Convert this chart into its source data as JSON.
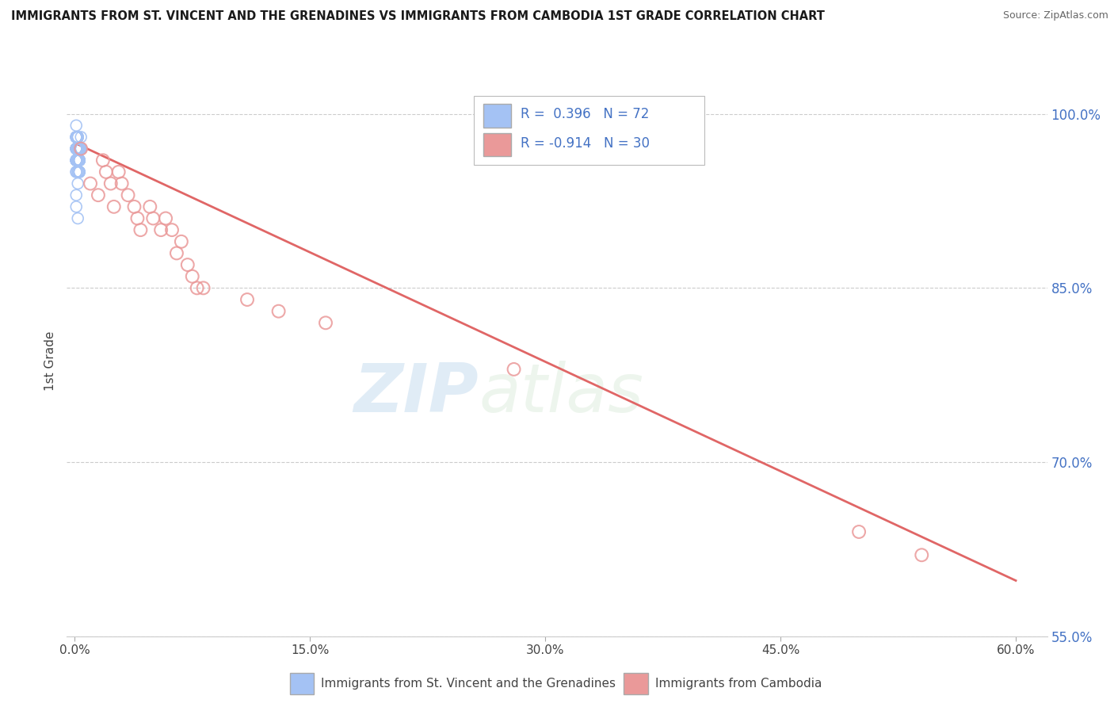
{
  "title": "IMMIGRANTS FROM ST. VINCENT AND THE GRENADINES VS IMMIGRANTS FROM CAMBODIA 1ST GRADE CORRELATION CHART",
  "source": "Source: ZipAtlas.com",
  "ylabel": "1st Grade",
  "legend_label1": "Immigrants from St. Vincent and the Grenadines",
  "legend_label2": "Immigrants from Cambodia",
  "r1": 0.396,
  "n1": 72,
  "r2": -0.914,
  "n2": 30,
  "xlim": [
    -0.005,
    0.62
  ],
  "ylim": [
    0.585,
    1.025
  ],
  "yticks": [
    1.0,
    0.85,
    0.7,
    0.55
  ],
  "ytick_labels": [
    "100.0%",
    "85.0%",
    "70.0%",
    "55.0%"
  ],
  "xticks": [
    0.0,
    0.15,
    0.3,
    0.45,
    0.6
  ],
  "xtick_labels": [
    "0.0%",
    "15.0%",
    "30.0%",
    "45.0%",
    "60.0%"
  ],
  "blue_color": "#a4c2f4",
  "pink_color": "#ea9999",
  "line_color": "#e06666",
  "watermark_zip": "ZIP",
  "watermark_atlas": "atlas",
  "blue_x": [
    0.001,
    0.002,
    0.001,
    0.003,
    0.002,
    0.001,
    0.004,
    0.003,
    0.002,
    0.001,
    0.002,
    0.003,
    0.001,
    0.002,
    0.004,
    0.003,
    0.001,
    0.002,
    0.003,
    0.001,
    0.002,
    0.001,
    0.003,
    0.002,
    0.001,
    0.004,
    0.002,
    0.003,
    0.001,
    0.002,
    0.001,
    0.002,
    0.003,
    0.001,
    0.002,
    0.003,
    0.001,
    0.002,
    0.001,
    0.003,
    0.002,
    0.001,
    0.002,
    0.003,
    0.001,
    0.002,
    0.001,
    0.003,
    0.002,
    0.001,
    0.002,
    0.001,
    0.003,
    0.002,
    0.001,
    0.002,
    0.003,
    0.001,
    0.002,
    0.001,
    0.002,
    0.001,
    0.003,
    0.002,
    0.001,
    0.004,
    0.002,
    0.003,
    0.001,
    0.002,
    0.001,
    0.002
  ],
  "blue_y": [
    0.98,
    0.97,
    0.99,
    0.97,
    0.98,
    0.97,
    0.98,
    0.97,
    0.96,
    0.98,
    0.97,
    0.96,
    0.97,
    0.98,
    0.97,
    0.96,
    0.98,
    0.97,
    0.96,
    0.97,
    0.97,
    0.98,
    0.96,
    0.97,
    0.98,
    0.97,
    0.96,
    0.97,
    0.97,
    0.98,
    0.96,
    0.97,
    0.95,
    0.97,
    0.96,
    0.97,
    0.98,
    0.96,
    0.97,
    0.95,
    0.97,
    0.96,
    0.97,
    0.95,
    0.96,
    0.97,
    0.97,
    0.96,
    0.97,
    0.96,
    0.97,
    0.96,
    0.97,
    0.95,
    0.96,
    0.97,
    0.96,
    0.97,
    0.96,
    0.95,
    0.97,
    0.95,
    0.96,
    0.97,
    0.96,
    0.97,
    0.95,
    0.96,
    0.93,
    0.94,
    0.92,
    0.91
  ],
  "pink_x": [
    0.004,
    0.01,
    0.015,
    0.018,
    0.02,
    0.023,
    0.025,
    0.028,
    0.03,
    0.034,
    0.038,
    0.04,
    0.042,
    0.048,
    0.05,
    0.055,
    0.058,
    0.062,
    0.065,
    0.068,
    0.072,
    0.075,
    0.078,
    0.082,
    0.11,
    0.13,
    0.16,
    0.28,
    0.5,
    0.54
  ],
  "pink_y": [
    0.97,
    0.94,
    0.93,
    0.96,
    0.95,
    0.94,
    0.92,
    0.95,
    0.94,
    0.93,
    0.92,
    0.91,
    0.9,
    0.92,
    0.91,
    0.9,
    0.91,
    0.9,
    0.88,
    0.89,
    0.87,
    0.86,
    0.85,
    0.85,
    0.84,
    0.83,
    0.82,
    0.78,
    0.64,
    0.62
  ],
  "pink_line_x": [
    0.0,
    0.6
  ],
  "pink_line_y": [
    0.975,
    0.598
  ]
}
